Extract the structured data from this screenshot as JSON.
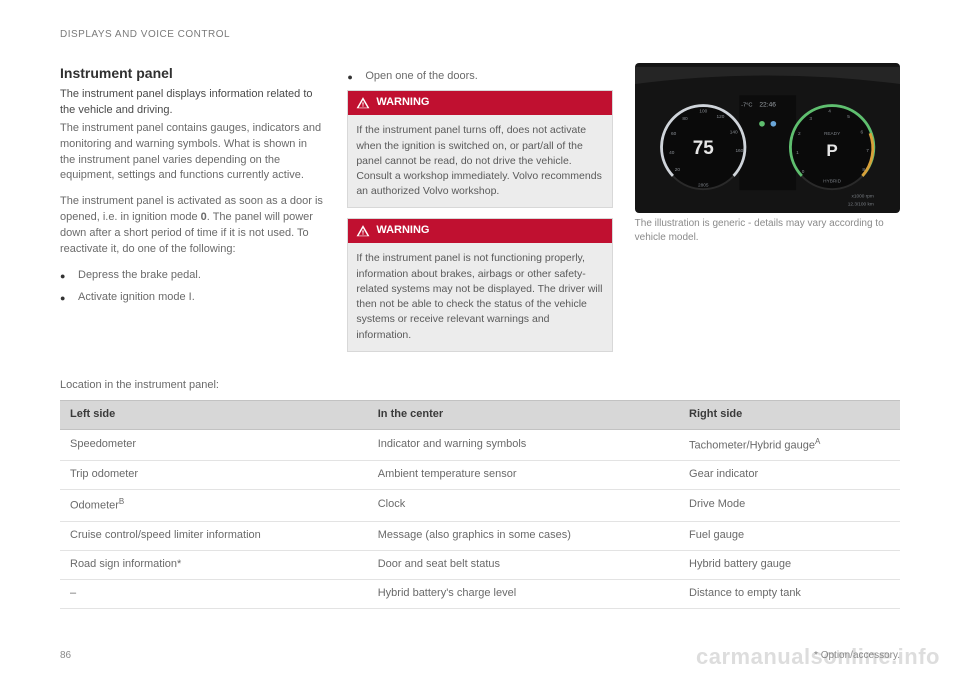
{
  "header": {
    "section": "DISPLAYS AND VOICE CONTROL"
  },
  "left": {
    "title": "Instrument panel",
    "intro": "The instrument panel displays information related to the vehicle and driving.",
    "p1": "The instrument panel contains gauges, indicators and monitoring and warning symbols. What is shown in the instrument panel varies depending on the equipment, settings and functions currently active.",
    "p2_a": "The instrument panel is activated as soon as a door is opened, i.e. in ignition mode ",
    "p2_b": "0",
    "p2_c": ". The panel will power down after a short period of time if it is not used. To reactivate it, do one of the following:",
    "bullets": [
      "Depress the brake pedal.",
      "Activate ignition mode I."
    ]
  },
  "center": {
    "bullet": "Open one of the doors.",
    "warn_label": "WARNING",
    "warn1": "If the instrument panel turns off, does not activate when the ignition is switched on, or part/all of the panel cannot be read, do not drive the vehicle. Consult a workshop immediately. Volvo recommends an authorized Volvo workshop.",
    "warn2": "If the instrument panel is not functioning properly, information about brakes, airbags or other safety-related systems may not be displayed. The driver will then not be able to check the status of the vehicle systems or receive relevant warnings and information."
  },
  "right": {
    "caption": "The illustration is generic - details may vary according to vehicle model.",
    "gauge": {
      "speed_value": "75",
      "speed_ticks": [
        "20",
        "40",
        "60",
        "80",
        "100",
        "120",
        "140",
        "160"
      ],
      "time": "22:46",
      "temp": "-7°C",
      "right_scale": [
        "0",
        "1",
        "2",
        "3",
        "4",
        "5",
        "6",
        "7",
        "8"
      ],
      "gear": "P",
      "odo": "2805",
      "rpm_label": "x1000 rpm",
      "trip": "12.3/100 km",
      "ready": "READY",
      "hybrid": "HYBRID",
      "colors": {
        "bg": "#141414",
        "ring": "#2a2a2a",
        "ring_hi": "#cfd4da",
        "text": "#d0d0d0",
        "accent": "#6aa6d8",
        "green": "#5fbf6f",
        "amber": "#d8a03a"
      }
    }
  },
  "table": {
    "caption": "Location in the instrument panel:",
    "columns": [
      "Left side",
      "In the center",
      "Right side"
    ],
    "rows": [
      [
        "Speedometer",
        "Indicator and warning symbols",
        "Tachometer/Hybrid gauge<sup>A</sup>"
      ],
      [
        "Trip odometer",
        "Ambient temperature sensor",
        "Gear indicator"
      ],
      [
        "Odometer<sup>B</sup>",
        "Clock",
        "Drive Mode"
      ],
      [
        "Cruise control/speed limiter information",
        "Message (also graphics in some cases)",
        "Fuel gauge"
      ],
      [
        "Road sign information*",
        "Door and seat belt status",
        "Hybrid battery gauge"
      ],
      [
        "–",
        "Hybrid battery's charge level",
        "Distance to empty tank"
      ]
    ]
  },
  "footer": {
    "page": "86",
    "note": "* Option/accessory."
  },
  "watermark": "carmanualsonline.info"
}
